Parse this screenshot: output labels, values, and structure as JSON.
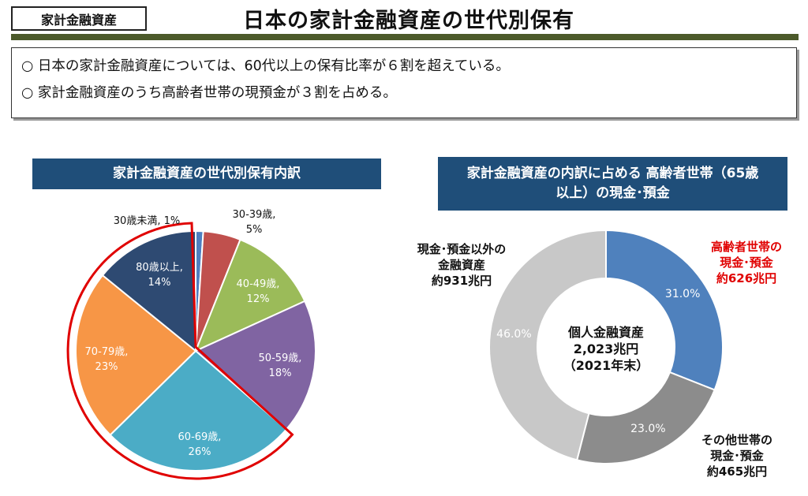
{
  "header": {
    "tag": "家計金融資産",
    "title": "日本の家計金融資産の世代別保有"
  },
  "summary": [
    "○ 日本の家計金融資産については、60代以上の保有比率が６割を超えている。",
    "○ 家計金融資産のうち高齢者世帯の現預金が３割を占める。"
  ],
  "colors": {
    "header_bar": "#4c5a2b",
    "panel_head": "#1f4e79",
    "highlight": "#e00000"
  },
  "chart_data": [
    {
      "type": "pie",
      "title": "家計金融資産の世代別保有内訳",
      "slices": [
        {
          "age": "30歳未満",
          "value": 1,
          "text": "1%",
          "color": "#4e7fc1"
        },
        {
          "age": "30-39歳",
          "value": 5,
          "text": "5%",
          "color": "#c0504d"
        },
        {
          "age": "40-49歳",
          "value": 12,
          "text": "12%",
          "color": "#9bbb59"
        },
        {
          "age": "50-59歳",
          "value": 18,
          "text": "18%",
          "color": "#8064a2"
        },
        {
          "age": "60-69歳",
          "value": 26,
          "text": "26%",
          "color": "#4bacc6"
        },
        {
          "age": "70-79歳",
          "value": 23,
          "text": "23%",
          "color": "#f79646"
        },
        {
          "age": "80歳以上",
          "value": 14,
          "text": "14%",
          "color": "#2e4a72"
        }
      ],
      "highlight": "60歳以上"
    },
    {
      "type": "pie",
      "donut": true,
      "title": "家計金融資産の内訳に占める 高齢者世帯（65歳以上）の現金･預金",
      "center_label": [
        "個人金融資産",
        "2,023兆円",
        "（2021年末）"
      ],
      "slices": [
        {
          "name": [
            "高齢者世帯の",
            "現金･預金",
            "約626兆円"
          ],
          "value": 31.0,
          "text": "31.0%",
          "color": "#4f81bd"
        },
        {
          "name": [
            "その他世帯の",
            "現金･預金",
            "約465兆円"
          ],
          "value": 23.0,
          "text": "23.0%",
          "color": "#8c8c8c"
        },
        {
          "name": [
            "現金･預金以外の",
            "金融資産",
            "約931兆円"
          ],
          "value": 46.0,
          "text": "46.0%",
          "color": "#c8c8c8"
        }
      ]
    }
  ]
}
